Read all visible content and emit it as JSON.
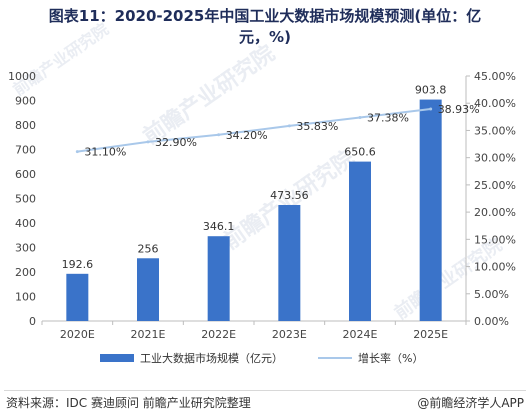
{
  "title_line1": "图表11：2020-2025年中国工业大数据市场规模预测(单位：亿",
  "title_line2": "元，%)",
  "chart_data": {
    "type": "bar",
    "categories": [
      "2020E",
      "2021E",
      "2022E",
      "2023E",
      "2024E",
      "2025E"
    ],
    "series": [
      {
        "name": "工业大数据市场规模（亿元）",
        "type": "bar",
        "axis": "left",
        "color": "#3a73c9",
        "values": [
          192.6,
          256,
          346.1,
          473.56,
          650.6,
          903.8
        ],
        "labels": [
          "192.6",
          "256",
          "346.1",
          "473.56",
          "650.6",
          "903.8"
        ]
      },
      {
        "name": "增长率（%）",
        "type": "line",
        "axis": "right",
        "color": "#a9c8ea",
        "values": [
          31.1,
          32.9,
          34.2,
          35.83,
          37.38,
          38.93
        ],
        "labels": [
          "31.10%",
          "32.90%",
          "34.20%",
          "35.83%",
          "37.38%",
          "38.93%"
        ]
      }
    ],
    "y_left": {
      "ylim": [
        0,
        1000
      ],
      "ticks": [
        "0",
        "100",
        "200",
        "300",
        "400",
        "500",
        "600",
        "700",
        "800",
        "900",
        "1000"
      ]
    },
    "y_right": {
      "ylim": [
        0,
        45
      ],
      "ticks": [
        "0.00%",
        "5.00%",
        "10.00%",
        "15.00%",
        "20.00%",
        "25.00%",
        "30.00%",
        "35.00%",
        "40.00%",
        "45.00%"
      ]
    },
    "grid": false,
    "legend": "bottom"
  },
  "footer": {
    "source": "资料来源：IDC 赛迪顾问 前瞻产业研究院整理",
    "brand": "@前瞻经济学人APP"
  }
}
